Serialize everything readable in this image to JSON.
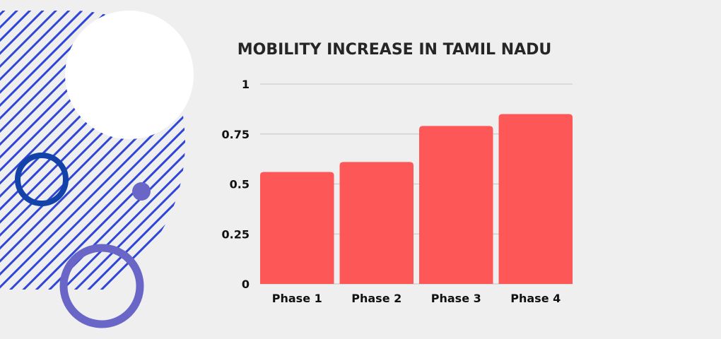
{
  "colors": {
    "background": "#efefef",
    "bar": "#fe5758",
    "grid": "#c4c4c4",
    "stripes": "#2f46d6",
    "ring_dark": "#1343a8",
    "ring_light": "#6a66c8",
    "dot": "#6a66c8",
    "blob": "#ffffff"
  },
  "chart_data": {
    "type": "bar",
    "title": "MOBILITY INCREASE IN TAMIL NADU",
    "xlabel": "",
    "ylabel": "",
    "categories": [
      "Phase 1",
      "Phase 2",
      "Phase 3",
      "Phase 4"
    ],
    "values": [
      0.56,
      0.61,
      0.79,
      0.85
    ],
    "ylim": [
      0,
      1
    ],
    "yticks": [
      0,
      0.25,
      0.5,
      0.75,
      1
    ],
    "ytick_labels": [
      "0",
      "0.25",
      "0.5",
      "0.75",
      "1"
    ],
    "grid": true,
    "legend": "none"
  }
}
